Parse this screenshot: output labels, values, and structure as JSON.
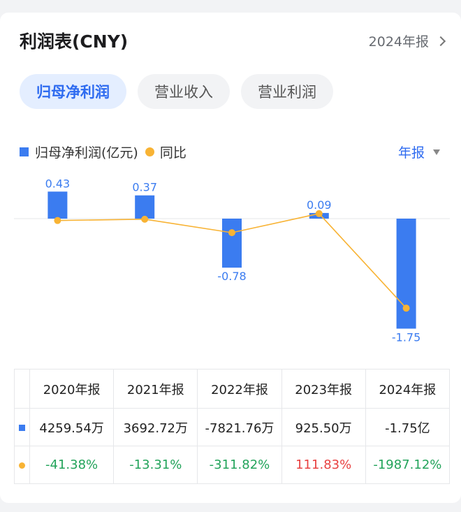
{
  "header": {
    "title": "利润表(CNY)",
    "period_link": "2024年报"
  },
  "tabs": [
    {
      "label": "归母净利润",
      "active": true
    },
    {
      "label": "营业收入",
      "active": false
    },
    {
      "label": "营业利润",
      "active": false
    }
  ],
  "legend": {
    "bar_label": "归母净利润(亿元)",
    "line_label": "同比"
  },
  "period_select": {
    "label": "年报"
  },
  "colors": {
    "bar": "#3b7cf0",
    "line": "#f8b334",
    "negative": "#22a35a",
    "positive": "#e84141",
    "accent": "#2e6bf0"
  },
  "chart_data": {
    "type": "bar",
    "categories": [
      "2020年报",
      "2021年报",
      "2022年报",
      "2023年报",
      "2024年报"
    ],
    "series": [
      {
        "name": "归母净利润(亿元)",
        "values": [
          0.43,
          0.37,
          -0.78,
          0.09,
          -1.75
        ],
        "labels": [
          "0.43",
          "0.37",
          "-0.78",
          "0.09",
          "-1.75"
        ]
      },
      {
        "name": "同比",
        "type": "line",
        "values": [
          -41.38,
          -13.31,
          -311.82,
          111.83,
          -1987.12
        ]
      }
    ]
  },
  "table": {
    "headers": [
      "2020年报",
      "2021年报",
      "2022年报",
      "2023年报",
      "2024年报"
    ],
    "profit_row": [
      "4259.54万",
      "3692.72万",
      "-7821.76万",
      "925.50万",
      "-1.75亿"
    ],
    "yoy_row": [
      "-41.38%",
      "-13.31%",
      "-311.82%",
      "111.83%",
      "-1987.12%"
    ]
  }
}
